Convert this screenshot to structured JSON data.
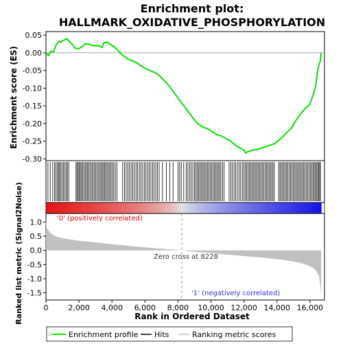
{
  "chart_data": {
    "type": "line",
    "title": "Enrichment plot:\nHALLMARK_OXIDATIVE_PHOSPHORYLATION",
    "title_lines": [
      "Enrichment plot:",
      "HALLMARK_OXIDATIVE_PHOSPHORYLATION"
    ],
    "xlabel": "Rank in Ordered Dataset",
    "es_panel": {
      "ylabel": "Enrichment score (ES)",
      "ylim": [
        -0.305,
        0.06
      ],
      "yticks": [
        0.05,
        0.0,
        -0.05,
        -0.1,
        -0.15,
        -0.2,
        -0.25,
        -0.3
      ],
      "ytick_labels": [
        "0.05",
        "0.00",
        "-0.05",
        "-0.10",
        "-0.15",
        "-0.20",
        "-0.25",
        "-0.30"
      ],
      "grid": false,
      "series": [
        {
          "name": "Enrichment profile",
          "color": "#00e000",
          "x": [
            0,
            150,
            300,
            450,
            600,
            700,
            800,
            900,
            1000,
            1100,
            1250,
            1400,
            1600,
            1800,
            2000,
            2200,
            2400,
            2600,
            2800,
            3000,
            3200,
            3400,
            3500,
            3700,
            3900,
            4100,
            4300,
            4600,
            4900,
            5200,
            5500,
            5800,
            6100,
            6400,
            6700,
            7000,
            7400,
            7800,
            8200,
            8600,
            9000,
            9200,
            9500,
            9800,
            10000,
            10300,
            10600,
            10900,
            11200,
            11500,
            11800,
            12000,
            12100,
            12300,
            12600,
            12900,
            13200,
            13500,
            13800,
            14100,
            14300,
            14600,
            14900,
            15100,
            15400,
            15700,
            16000,
            16200,
            16350,
            16450,
            16550,
            16620,
            16680
          ],
          "y": [
            0.0,
            -0.008,
            0.004,
            0.002,
            0.02,
            0.028,
            0.033,
            0.03,
            0.034,
            0.036,
            0.04,
            0.033,
            0.023,
            0.012,
            0.012,
            0.018,
            0.026,
            0.024,
            0.021,
            0.02,
            0.02,
            0.015,
            0.028,
            0.03,
            0.024,
            0.018,
            0.01,
            -0.005,
            -0.016,
            -0.022,
            -0.028,
            -0.038,
            -0.046,
            -0.052,
            -0.058,
            -0.07,
            -0.09,
            -0.115,
            -0.14,
            -0.165,
            -0.19,
            -0.2,
            -0.21,
            -0.215,
            -0.22,
            -0.23,
            -0.235,
            -0.242,
            -0.25,
            -0.262,
            -0.27,
            -0.275,
            -0.283,
            -0.278,
            -0.275,
            -0.272,
            -0.268,
            -0.262,
            -0.258,
            -0.248,
            -0.24,
            -0.225,
            -0.212,
            -0.195,
            -0.175,
            -0.158,
            -0.145,
            -0.118,
            -0.092,
            -0.055,
            -0.032,
            -0.025,
            0.0
          ]
        }
      ]
    },
    "hits": {
      "label": "Hits",
      "color": "#000000",
      "positions": [
        120,
        260,
        410,
        520,
        600,
        680,
        760,
        820,
        900,
        980,
        1060,
        1150,
        1230,
        1300,
        1380,
        1820,
        1880,
        1950,
        2010,
        2080,
        2150,
        2230,
        2300,
        2380,
        2460,
        2530,
        2610,
        2690,
        2780,
        2850,
        2930,
        3010,
        3090,
        3170,
        3260,
        3330,
        3410,
        3480,
        3550,
        3620,
        3700,
        3780,
        3860,
        3940,
        4020,
        4110,
        4200,
        4300,
        4650,
        4760,
        4860,
        4960,
        5060,
        5160,
        5260,
        5360,
        5460,
        5560,
        5660,
        5760,
        5860,
        5960,
        6060,
        6160,
        6260,
        6360,
        6460,
        6560,
        6660,
        6760,
        6860,
        7060,
        7300,
        7500,
        7700,
        8000,
        8100,
        8200,
        8350,
        8500,
        8600,
        8700,
        8800,
        8900,
        9000,
        9080,
        9160,
        9240,
        9320,
        9400,
        9480,
        9560,
        9640,
        9720,
        9800,
        9880,
        9960,
        10040,
        10120,
        10200,
        10280,
        10360,
        10440,
        10520,
        10600,
        10700,
        10800,
        11100,
        11200,
        11300,
        11400,
        11500,
        11600,
        11700,
        11800,
        11900,
        12000,
        12080,
        12160,
        12240,
        12320,
        12400,
        12480,
        12560,
        12640,
        12720,
        12800,
        12880,
        12960,
        13040,
        13120,
        13200,
        13280,
        13360,
        13440,
        13520,
        13600,
        13680,
        13760,
        13840,
        14100,
        14180,
        14260,
        14340,
        14420,
        14500,
        14580,
        14660,
        14740,
        14820,
        14900,
        14980,
        15060,
        15140,
        15220,
        15300,
        15380,
        15460,
        15540,
        15620,
        15700,
        15780,
        15860,
        15940,
        16020,
        16100,
        16180,
        16250,
        16320,
        16390,
        16460,
        16520,
        16580,
        16640
      ]
    },
    "metric_panel": {
      "ylabel": "Ranked list metric (Signal2Noise)",
      "ylim": [
        -1.75,
        1.3
      ],
      "yticks": [
        1.0,
        0.5,
        0.0,
        -0.5,
        -1.0,
        -1.5
      ],
      "ytick_labels": [
        "1.0",
        "0.5",
        "0.0",
        "-0.5",
        "-1.0",
        "-1.5"
      ],
      "fill_color": "#c0c0c0",
      "series": [
        {
          "name": "Ranking metric scores",
          "x": [
            0,
            50,
            150,
            300,
            500,
            800,
            1200,
            2000,
            3000,
            4000,
            5000,
            6000,
            7000,
            8228,
            9000,
            10000,
            11000,
            12000,
            13000,
            14000,
            14800,
            15400,
            15900,
            16200,
            16400,
            16550,
            16620,
            16680
          ],
          "y": [
            1.1,
            0.8,
            0.7,
            0.6,
            0.52,
            0.46,
            0.41,
            0.34,
            0.28,
            0.22,
            0.16,
            0.11,
            0.06,
            0.0,
            -0.05,
            -0.1,
            -0.15,
            -0.2,
            -0.25,
            -0.31,
            -0.37,
            -0.44,
            -0.53,
            -0.62,
            -0.74,
            -0.92,
            -1.2,
            -1.6
          ]
        }
      ],
      "zero_cross_label": "Zero cross at 8228",
      "zero_cross_rank": 8228,
      "positive_label": "'0' (positively correlated)",
      "negative_label": "'1' (negatively correlated)"
    },
    "xlim": [
      0,
      16880
    ],
    "xticks": [
      0,
      2000,
      4000,
      6000,
      8000,
      10000,
      12000,
      14000,
      16000
    ],
    "xtick_labels": [
      "0",
      "2,000",
      "4,000",
      "6,000",
      "8,000",
      "10,000",
      "12,000",
      "14,000",
      "16,000"
    ],
    "legend": {
      "placement": "bottom",
      "items": [
        {
          "label": "Enrichment profile",
          "color": "#00e000"
        },
        {
          "label": "Hits",
          "color": "#000000"
        },
        {
          "label": "Ranking metric scores",
          "color": "#c0c0c0"
        }
      ]
    }
  }
}
